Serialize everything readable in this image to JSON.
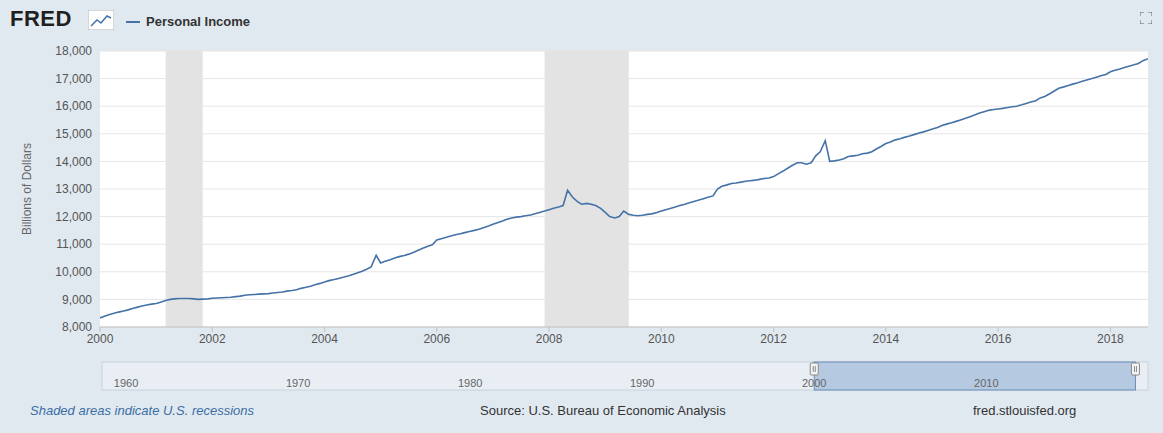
{
  "chart_data": {
    "type": "line",
    "logo": "FRED",
    "y_label": "Billions of Dollars",
    "note": "Shaded areas indicate U.S. recessions",
    "source": "Source: U.S. Bureau of Economic Analysis",
    "url": "fred.stlouisfed.org",
    "grid": true,
    "x": [
      2000,
      2000.08,
      2000.17,
      2000.25,
      2000.33,
      2000.42,
      2000.5,
      2000.58,
      2000.67,
      2000.75,
      2000.83,
      2000.92,
      2001,
      2001.08,
      2001.17,
      2001.25,
      2001.33,
      2001.42,
      2001.5,
      2001.58,
      2001.67,
      2001.75,
      2001.83,
      2001.92,
      2002,
      2002.08,
      2002.17,
      2002.25,
      2002.33,
      2002.42,
      2002.5,
      2002.58,
      2002.67,
      2002.75,
      2002.83,
      2002.92,
      2003,
      2003.08,
      2003.17,
      2003.25,
      2003.33,
      2003.42,
      2003.5,
      2003.58,
      2003.67,
      2003.75,
      2003.83,
      2003.92,
      2004,
      2004.08,
      2004.17,
      2004.25,
      2004.33,
      2004.42,
      2004.5,
      2004.58,
      2004.67,
      2004.75,
      2004.83,
      2004.92,
      2005,
      2005.08,
      2005.17,
      2005.25,
      2005.33,
      2005.42,
      2005.5,
      2005.58,
      2005.67,
      2005.75,
      2005.83,
      2005.92,
      2006,
      2006.08,
      2006.17,
      2006.25,
      2006.33,
      2006.42,
      2006.5,
      2006.58,
      2006.67,
      2006.75,
      2006.83,
      2006.92,
      2007,
      2007.08,
      2007.17,
      2007.25,
      2007.33,
      2007.42,
      2007.5,
      2007.58,
      2007.67,
      2007.75,
      2007.83,
      2007.92,
      2008,
      2008.08,
      2008.17,
      2008.25,
      2008.33,
      2008.42,
      2008.5,
      2008.58,
      2008.67,
      2008.75,
      2008.83,
      2008.92,
      2009,
      2009.08,
      2009.17,
      2009.25,
      2009.33,
      2009.42,
      2009.5,
      2009.58,
      2009.67,
      2009.75,
      2009.83,
      2009.92,
      2010,
      2010.08,
      2010.17,
      2010.25,
      2010.33,
      2010.42,
      2010.5,
      2010.58,
      2010.67,
      2010.75,
      2010.83,
      2010.92,
      2011,
      2011.08,
      2011.17,
      2011.25,
      2011.33,
      2011.42,
      2011.5,
      2011.58,
      2011.67,
      2011.75,
      2011.83,
      2011.92,
      2012,
      2012.08,
      2012.17,
      2012.25,
      2012.33,
      2012.42,
      2012.5,
      2012.58,
      2012.67,
      2012.75,
      2012.83,
      2012.92,
      2013,
      2013.08,
      2013.17,
      2013.25,
      2013.33,
      2013.42,
      2013.5,
      2013.58,
      2013.67,
      2013.75,
      2013.83,
      2013.92,
      2014,
      2014.08,
      2014.17,
      2014.25,
      2014.33,
      2014.42,
      2014.5,
      2014.58,
      2014.67,
      2014.75,
      2014.83,
      2014.92,
      2015,
      2015.08,
      2015.17,
      2015.25,
      2015.33,
      2015.42,
      2015.5,
      2015.58,
      2015.67,
      2015.75,
      2015.83,
      2015.92,
      2016,
      2016.08,
      2016.17,
      2016.25,
      2016.33,
      2016.42,
      2016.5,
      2016.58,
      2016.67,
      2016.75,
      2016.83,
      2016.92,
      2017,
      2017.08,
      2017.17,
      2017.25,
      2017.33,
      2017.42,
      2017.5,
      2017.58,
      2017.67,
      2017.75,
      2017.83,
      2017.92,
      2018,
      2018.08,
      2018.17,
      2018.25,
      2018.33,
      2018.42,
      2018.5,
      2018.58,
      2018.67
    ],
    "series": [
      {
        "name": "Personal Income",
        "color": "#4572a7",
        "values": [
          8330,
          8390,
          8450,
          8500,
          8540,
          8580,
          8620,
          8670,
          8720,
          8760,
          8800,
          8830,
          8850,
          8900,
          8960,
          9000,
          9020,
          9030,
          9030,
          9030,
          9020,
          9000,
          9010,
          9020,
          9040,
          9050,
          9060,
          9070,
          9080,
          9100,
          9120,
          9150,
          9170,
          9180,
          9190,
          9200,
          9210,
          9230,
          9250,
          9270,
          9300,
          9320,
          9350,
          9400,
          9440,
          9480,
          9530,
          9580,
          9630,
          9680,
          9720,
          9760,
          9800,
          9850,
          9900,
          9960,
          10020,
          10090,
          10180,
          10600,
          10320,
          10380,
          10440,
          10500,
          10550,
          10590,
          10640,
          10700,
          10780,
          10850,
          10920,
          10980,
          11150,
          11200,
          11250,
          11300,
          11340,
          11380,
          11420,
          11460,
          11500,
          11540,
          11600,
          11660,
          11720,
          11780,
          11840,
          11900,
          11950,
          11980,
          12000,
          12030,
          12060,
          12100,
          12150,
          12200,
          12250,
          12300,
          12350,
          12400,
          12950,
          12700,
          12550,
          12450,
          12480,
          12450,
          12400,
          12300,
          12150,
          12000,
          11950,
          12000,
          12200,
          12080,
          12050,
          12030,
          12050,
          12080,
          12100,
          12150,
          12200,
          12250,
          12300,
          12350,
          12400,
          12450,
          12500,
          12550,
          12600,
          12650,
          12700,
          12750,
          13000,
          13100,
          13150,
          13200,
          13220,
          13250,
          13280,
          13300,
          13320,
          13350,
          13380,
          13400,
          13450,
          13550,
          13650,
          13750,
          13850,
          13950,
          13950,
          13900,
          13950,
          14200,
          14350,
          14750,
          14000,
          14020,
          14050,
          14100,
          14180,
          14200,
          14220,
          14280,
          14300,
          14350,
          14450,
          14550,
          14650,
          14700,
          14780,
          14820,
          14870,
          14920,
          14970,
          15020,
          15070,
          15120,
          15170,
          15230,
          15300,
          15350,
          15400,
          15450,
          15500,
          15560,
          15620,
          15680,
          15750,
          15800,
          15850,
          15880,
          15900,
          15920,
          15950,
          15980,
          16000,
          16050,
          16100,
          16150,
          16200,
          16300,
          16350,
          16450,
          16550,
          16650,
          16700,
          16750,
          16800,
          16850,
          16900,
          16950,
          17000,
          17050,
          17100,
          17150,
          17250,
          17300,
          17350,
          17400,
          17450,
          17500,
          17550,
          17650,
          17720
        ]
      }
    ],
    "xlim": [
      2000,
      2018.67
    ],
    "xticks": [
      2000,
      2002,
      2004,
      2006,
      2008,
      2010,
      2012,
      2014,
      2016,
      2018
    ],
    "ylim": [
      8000,
      18000
    ],
    "yticks": [
      {
        "value": 8000,
        "label": "8,000"
      },
      {
        "value": 9000,
        "label": "9,000"
      },
      {
        "value": 10000,
        "label": "10,000"
      },
      {
        "value": 11000,
        "label": "11,000"
      },
      {
        "value": 12000,
        "label": "12,000"
      },
      {
        "value": 13000,
        "label": "13,000"
      },
      {
        "value": 14000,
        "label": "14,000"
      },
      {
        "value": 15000,
        "label": "15,000"
      },
      {
        "value": 16000,
        "label": "16,000"
      },
      {
        "value": 17000,
        "label": "17,000"
      },
      {
        "value": 18000,
        "label": "18,000"
      }
    ],
    "recessions": [
      [
        2001.17,
        2001.83
      ],
      [
        2007.92,
        2009.42
      ]
    ],
    "navigator": {
      "xlim": [
        1958.6,
        2019.4
      ],
      "xticks": [
        1960,
        1970,
        1980,
        1990,
        2000,
        2010
      ]
    }
  }
}
